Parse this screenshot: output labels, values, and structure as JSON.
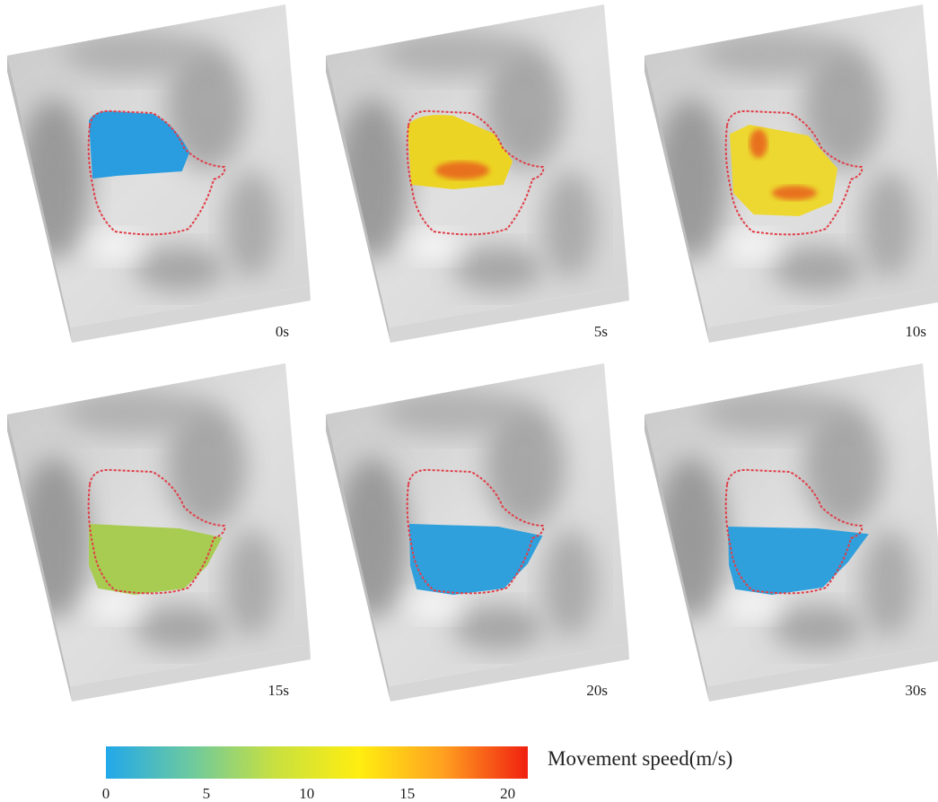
{
  "panels": [
    {
      "label": "0s"
    },
    {
      "label": "5s"
    },
    {
      "label": "10s"
    },
    {
      "label": "15s"
    },
    {
      "label": "20s"
    },
    {
      "label": "30s"
    }
  ],
  "colorbar": {
    "label": "Movement speed(m/s)",
    "range": [
      0,
      21
    ],
    "ticks": [
      0,
      5,
      10,
      15,
      20
    ],
    "colors": [
      "#22a8ea",
      "#6cc9a0",
      "#c8e040",
      "#ffee10",
      "#ffa020",
      "#f02010"
    ]
  }
}
